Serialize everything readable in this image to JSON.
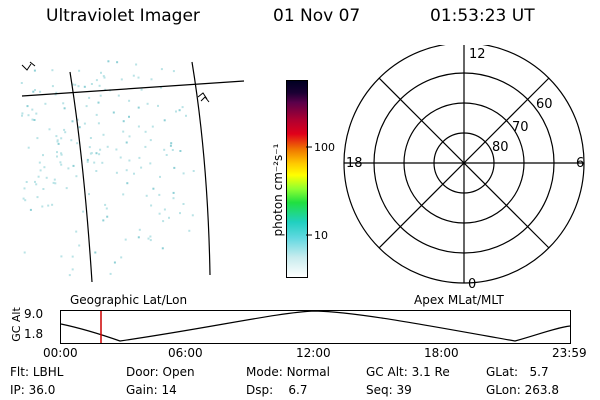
{
  "header": {
    "title": "Ultraviolet Imager",
    "date": "01 Nov 07",
    "time": "01:53:23 UT"
  },
  "colorbar": {
    "label": "photon cm⁻²s⁻¹",
    "ticks": [
      "100",
      "10"
    ]
  },
  "polar": {
    "mlt_labels": {
      "top": "12",
      "left": "18",
      "right": "6",
      "bottom": "0"
    },
    "lat_labels": [
      "60",
      "70",
      "80"
    ]
  },
  "timeline": {
    "axis_label": "GC Alt",
    "y_ticks": [
      "9.0",
      "1.8"
    ],
    "left_caption": "Geographic Lat/Lon",
    "right_caption": "Apex MLat/MLT",
    "x_ticks": [
      "00:00",
      "06:00",
      "12:00",
      "18:00",
      "23:59"
    ],
    "marker_color": "#cc0000"
  },
  "info": {
    "row1": [
      {
        "label": "Flt:",
        "value": "LBHL"
      },
      {
        "label": "Door:",
        "value": "Open"
      },
      {
        "label": "Mode:",
        "value": "Normal"
      },
      {
        "label": "GC Alt:",
        "value": "3.1 Re"
      },
      {
        "label": "GLat:",
        "value": "5.7"
      }
    ],
    "row2": [
      {
        "label": "IP:",
        "value": "36.0"
      },
      {
        "label": "Gain:",
        "value": "14"
      },
      {
        "label": "Dsp:",
        "value": "6.7"
      },
      {
        "label": "Seq:",
        "value": "39"
      },
      {
        "label": "GLon:",
        "value": "263.8"
      }
    ]
  },
  "colors": {
    "speckle": "#b9e3e6",
    "speckle_dark": "#8fd0d6"
  }
}
